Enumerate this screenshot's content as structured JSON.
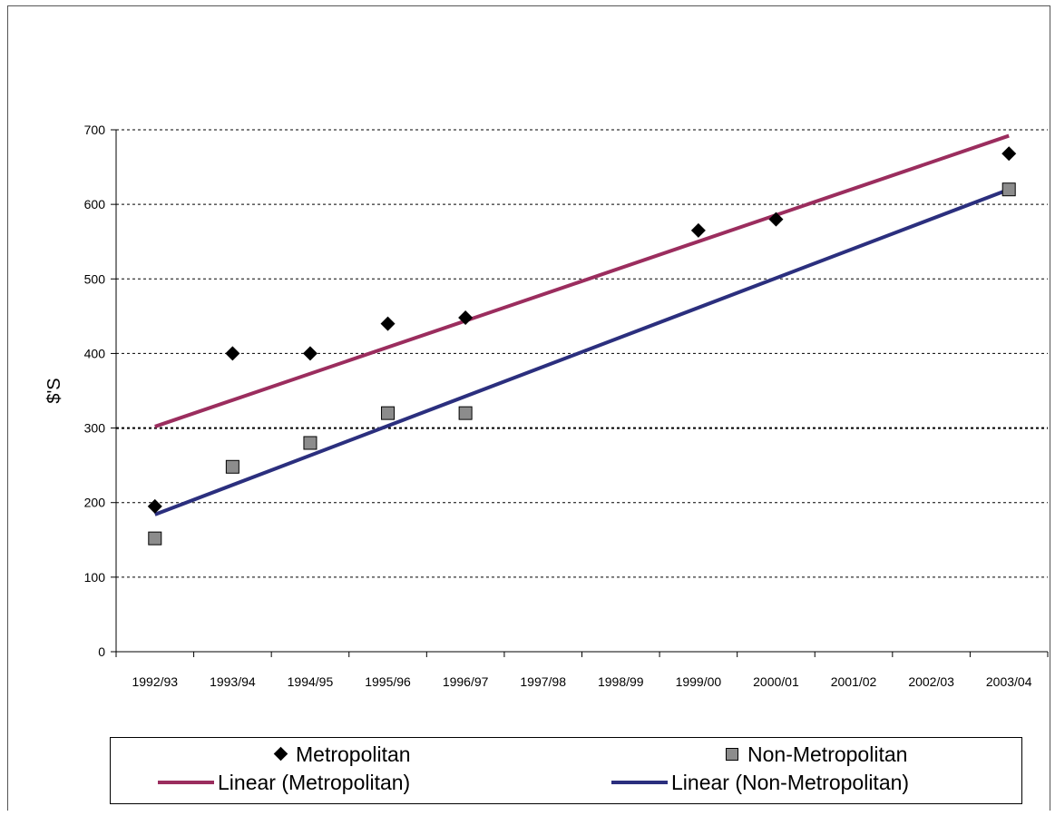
{
  "chart_data": {
    "type": "scatter",
    "title": "",
    "xlabel": "",
    "ylabel": "$'S",
    "ylim": [
      0,
      700
    ],
    "yticks": [
      0,
      100,
      200,
      300,
      400,
      500,
      600,
      700
    ],
    "categories": [
      "1992/93",
      "1993/94",
      "1994/95",
      "1995/96",
      "1996/97",
      "1997/98",
      "1998/99",
      "1999/00",
      "2000/01",
      "2001/02",
      "2002/03",
      "2003/04"
    ],
    "grid": true,
    "legend_position": "bottom",
    "series": [
      {
        "name": "Metropolitan",
        "marker": "diamond",
        "color": "#000000",
        "points": [
          {
            "x": "1992/93",
            "y": 195
          },
          {
            "x": "1993/94",
            "y": 400
          },
          {
            "x": "1994/95",
            "y": 400
          },
          {
            "x": "1995/96",
            "y": 440
          },
          {
            "x": "1996/97",
            "y": 448
          },
          {
            "x": "1999/00",
            "y": 565
          },
          {
            "x": "2000/01",
            "y": 580
          },
          {
            "x": "2003/04",
            "y": 668
          }
        ]
      },
      {
        "name": "Non-Metropolitan",
        "marker": "square",
        "color": "#8c8c8c",
        "points": [
          {
            "x": "1992/93",
            "y": 152
          },
          {
            "x": "1993/94",
            "y": 248
          },
          {
            "x": "1994/95",
            "y": 280
          },
          {
            "x": "1995/96",
            "y": 320
          },
          {
            "x": "1996/97",
            "y": 320
          },
          {
            "x": "2003/04",
            "y": 620
          }
        ]
      }
    ],
    "trendlines": [
      {
        "name": "Linear (Metropolitan)",
        "color": "#9b2d5e",
        "start": {
          "x": "1992/93",
          "y": 302
        },
        "end": {
          "x": "2003/04",
          "y": 692
        }
      },
      {
        "name": "Linear (Non-Metropolitan)",
        "color": "#2b2f7e",
        "start": {
          "x": "1992/93",
          "y": 184
        },
        "end": {
          "x": "2003/04",
          "y": 620
        }
      }
    ]
  }
}
